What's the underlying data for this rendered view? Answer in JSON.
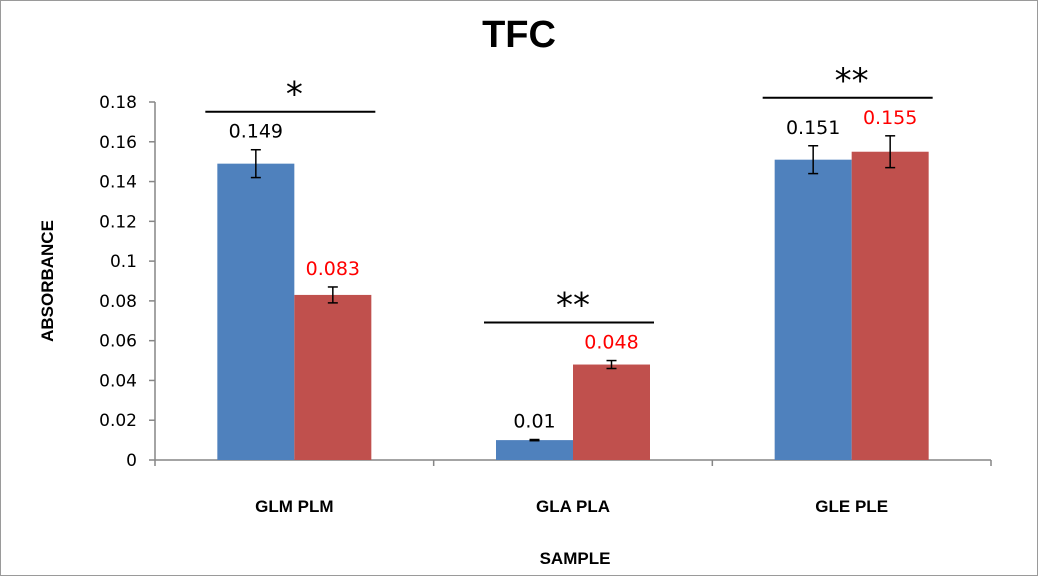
{
  "chart_data": {
    "type": "bar",
    "title": "TFC",
    "xlabel": "SAMPLE",
    "ylabel": "ABSORBANCE",
    "categories": [
      "GLM PLM",
      "GLA PLA",
      "GLE PLE"
    ],
    "ylim": [
      0,
      0.18
    ],
    "yticks": [
      {
        "value": 0,
        "label": "0"
      },
      {
        "value": 0.02,
        "label": "0.02"
      },
      {
        "value": 0.04,
        "label": "0.04"
      },
      {
        "value": 0.06,
        "label": "0.06"
      },
      {
        "value": 0.08,
        "label": "0.08"
      },
      {
        "value": 0.1,
        "label": "0.1"
      },
      {
        "value": 0.12,
        "label": "0.12"
      },
      {
        "value": 0.14,
        "label": "0.14"
      },
      {
        "value": 0.16,
        "label": "0.16"
      },
      {
        "value": 0.18,
        "label": "0.18"
      }
    ],
    "series": [
      {
        "color": "#4f81bd",
        "label_color": "#000000",
        "values": [
          0.149,
          0.01,
          0.151
        ],
        "errors": [
          0.007,
          0.0003,
          0.007
        ],
        "data_labels": [
          "0.149",
          "0.01",
          "0.151"
        ]
      },
      {
        "color": "#c0504d",
        "label_color": "#ff0000",
        "values": [
          0.083,
          0.048,
          0.155
        ],
        "errors": [
          0.004,
          0.002,
          0.008
        ],
        "data_labels": [
          "0.083",
          "0.048",
          "0.155"
        ]
      }
    ],
    "significance": [
      "*",
      "**",
      "**"
    ],
    "grid": false,
    "legend": "none"
  }
}
